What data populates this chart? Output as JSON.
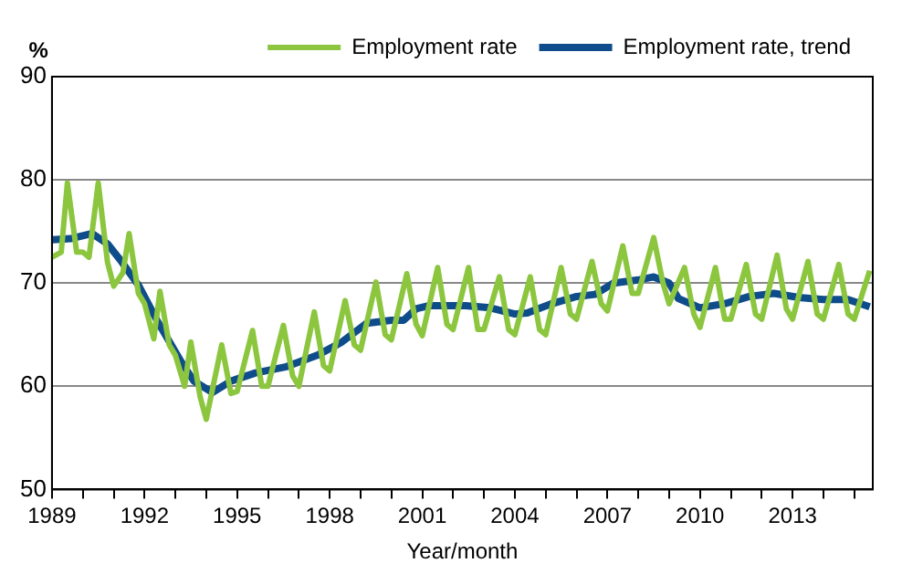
{
  "chart_data": {
    "type": "line",
    "ylabel": "%",
    "xlabel": "Year/month",
    "xlim": [
      1989,
      2015.6
    ],
    "ylim": [
      50,
      90
    ],
    "yticks": [
      50,
      60,
      70,
      80,
      90
    ],
    "xticks": [
      {
        "value": 1989,
        "label": "1989"
      },
      {
        "value": 1990,
        "label": null
      },
      {
        "value": 1991,
        "label": null
      },
      {
        "value": 1992,
        "label": "1992"
      },
      {
        "value": 1993,
        "label": null
      },
      {
        "value": 1994,
        "label": null
      },
      {
        "value": 1995,
        "label": "1995"
      },
      {
        "value": 1996,
        "label": null
      },
      {
        "value": 1997,
        "label": null
      },
      {
        "value": 1998,
        "label": "1998"
      },
      {
        "value": 1999,
        "label": null
      },
      {
        "value": 2000,
        "label": null
      },
      {
        "value": 2001,
        "label": "2001"
      },
      {
        "value": 2002,
        "label": null
      },
      {
        "value": 2003,
        "label": null
      },
      {
        "value": 2004,
        "label": "2004"
      },
      {
        "value": 2005,
        "label": null
      },
      {
        "value": 2006,
        "label": null
      },
      {
        "value": 2007,
        "label": "2007"
      },
      {
        "value": 2008,
        "label": null
      },
      {
        "value": 2009,
        "label": null
      },
      {
        "value": 2010,
        "label": "2010"
      },
      {
        "value": 2011,
        "label": null
      },
      {
        "value": 2012,
        "label": null
      },
      {
        "value": 2013,
        "label": "2013"
      },
      {
        "value": 2014,
        "label": null
      },
      {
        "value": 2015,
        "label": null
      }
    ],
    "grid": "y",
    "legend": "top",
    "marker": "none",
    "line_style": "solid",
    "series": [
      {
        "name": "Employment rate",
        "color": "#8cc63f",
        "x": [
          1989.0,
          1989.3,
          1989.5,
          1989.8,
          1990.0,
          1990.2,
          1990.5,
          1990.8,
          1991.0,
          1991.3,
          1991.5,
          1991.8,
          1992.0,
          1992.3,
          1992.5,
          1992.8,
          1993.0,
          1993.3,
          1993.5,
          1993.8,
          1994.0,
          1994.5,
          1994.8,
          1995.0,
          1995.5,
          1995.8,
          1996.0,
          1996.5,
          1996.8,
          1997.0,
          1997.5,
          1997.8,
          1998.0,
          1998.5,
          1998.8,
          1999.0,
          1999.5,
          1999.8,
          2000.0,
          2000.5,
          2000.8,
          2001.0,
          2001.5,
          2001.8,
          2002.0,
          2002.5,
          2002.8,
          2003.0,
          2003.5,
          2003.8,
          2004.0,
          2004.5,
          2004.8,
          2005.0,
          2005.5,
          2005.8,
          2006.0,
          2006.5,
          2006.8,
          2007.0,
          2007.5,
          2007.8,
          2008.0,
          2008.5,
          2008.8,
          2009.0,
          2009.5,
          2009.8,
          2010.0,
          2010.5,
          2010.8,
          2011.0,
          2011.5,
          2011.8,
          2012.0,
          2012.5,
          2012.8,
          2013.0,
          2013.5,
          2013.8,
          2014.0,
          2014.5,
          2014.8,
          2015.0,
          2015.5
        ],
        "values": [
          72.5,
          73,
          79.7,
          73,
          73,
          72.5,
          79.7,
          72,
          69.7,
          71,
          74.8,
          69,
          68,
          64.6,
          69.2,
          64,
          63,
          60,
          64.3,
          59,
          56.8,
          64,
          59.3,
          59.5,
          65.4,
          60,
          60,
          65.9,
          61,
          60,
          67.2,
          62,
          61.5,
          68.3,
          64,
          63.5,
          70.1,
          65,
          64.5,
          70.9,
          66,
          64.9,
          71.5,
          66,
          65.5,
          71.5,
          65.5,
          65.5,
          70.6,
          65.5,
          65,
          70.6,
          65.5,
          65,
          71.5,
          67,
          66.5,
          72.1,
          68,
          67.3,
          73.6,
          69,
          69,
          74.4,
          70,
          68,
          71.5,
          67,
          65.7,
          71.5,
          66.5,
          66.5,
          71.8,
          67,
          66.5,
          72.7,
          67.5,
          66.5,
          72.1,
          67,
          66.5,
          71.8,
          67,
          66.5,
          71.2
        ]
      },
      {
        "name": "Employment rate, trend",
        "color": "#0f4c8c",
        "x": [
          1989.0,
          1989.6,
          1990.3,
          1990.8,
          1991.2,
          1991.8,
          1992.4,
          1993.2,
          1993.6,
          1994.2,
          1994.8,
          1995.6,
          1996.6,
          1997.6,
          1998.4,
          1999.2,
          2000.0,
          2000.4,
          2000.8,
          2001.2,
          2002.4,
          2003.2,
          2004.0,
          2004.4,
          2005.2,
          2006.0,
          2006.6,
          2007.2,
          2008.0,
          2008.5,
          2009.0,
          2009.3,
          2010.0,
          2010.8,
          2011.6,
          2012.4,
          2013.2,
          2014.0,
          2014.8,
          2015.5
        ],
        "values": [
          74.2,
          74.3,
          74.8,
          73.8,
          72.3,
          69.8,
          66.4,
          62.3,
          60.5,
          59.4,
          60.5,
          61.3,
          61.9,
          63,
          64.3,
          66.1,
          66.4,
          66.4,
          67.5,
          67.8,
          67.8,
          67.6,
          67,
          67.1,
          68,
          68.7,
          68.9,
          70,
          70.3,
          70.6,
          70,
          68.5,
          67.6,
          68,
          68.7,
          69,
          68.6,
          68.4,
          68.4,
          67.7
        ]
      }
    ]
  }
}
